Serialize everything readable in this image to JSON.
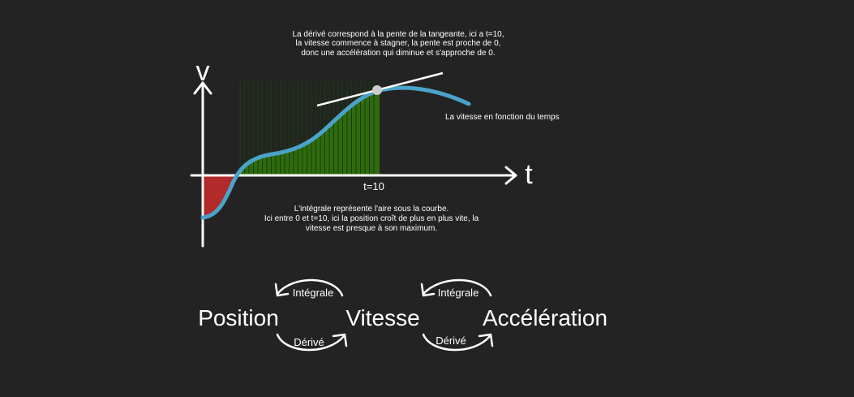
{
  "colors": {
    "background": "#232323",
    "curve": "#4aa3c8",
    "positive_area": "#2e6b0e",
    "negative_area": "#b22a2a",
    "axis": "#ffffff",
    "point": "#cccccc"
  },
  "graph": {
    "y_axis_label": "v",
    "x_axis_label": "t",
    "marker_label": "t=10",
    "curve_label": "La vitesse en fonction du temps",
    "top_note": [
      "La dérivé correspond à la pente de la tangeante, ici a t=10,",
      "la vitesse commence à stagner, la pente est proche de 0,",
      "donc une accélération qui diminue et s'approche de 0."
    ],
    "bottom_note": [
      "L'intégrale représente l'aire sous la courbe.",
      "Ici entre 0 et t=10, ici la position croît de plus en plus vite, la",
      "vitesse est presque à son maximum."
    ]
  },
  "relations": {
    "nodes": [
      "Position",
      "Vitesse",
      "Accélération"
    ],
    "integral_label": "Intégrale",
    "derivative_label": "Dérivé"
  }
}
